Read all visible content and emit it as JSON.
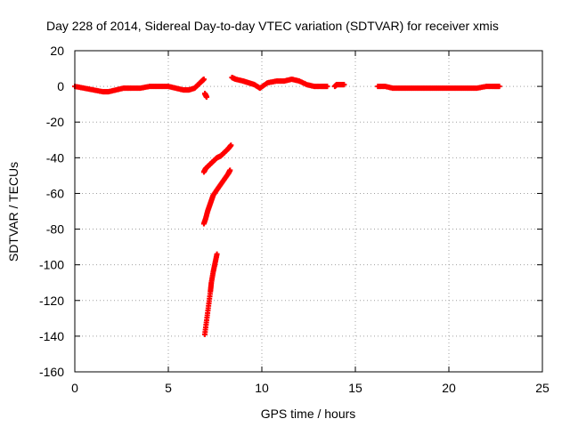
{
  "chart_data": {
    "type": "scatter",
    "title": "Day 228 of 2014, Sidereal Day-to-day VTEC variation (SDTVAR) for receiver xmis",
    "xlabel": "GPS time / hours",
    "ylabel": "SDTVAR / TECUs",
    "xlim": [
      0,
      25
    ],
    "ylim": [
      -160,
      20
    ],
    "xticks": [
      0,
      5,
      10,
      15,
      20,
      25
    ],
    "yticks": [
      -160,
      -140,
      -120,
      -100,
      -80,
      -60,
      -40,
      -20,
      0,
      20
    ],
    "grid": true,
    "marker": "plus",
    "series_color": "#ff0000",
    "segments": [
      {
        "x": [
          0.0,
          0.5,
          1.0,
          1.5,
          1.8,
          2.2,
          2.6,
          3.0,
          3.5,
          4.0,
          4.5,
          5.0,
          5.4,
          5.8,
          6.1,
          6.4,
          6.6,
          6.8,
          6.9
        ],
        "y": [
          0,
          -1,
          -2,
          -3,
          -3,
          -2,
          -1,
          -1,
          -1,
          0,
          0,
          0,
          -1,
          -2,
          -2,
          -1,
          1,
          3,
          4
        ]
      },
      {
        "x": [
          6.95,
          7.0,
          7.05
        ],
        "y": [
          -4,
          -5,
          -6
        ]
      },
      {
        "x": [
          6.9,
          7.0,
          7.2,
          7.4,
          7.6,
          7.8,
          8.0,
          8.2,
          8.35
        ],
        "y": [
          -48,
          -46,
          -44,
          -42,
          -40,
          -39,
          -37,
          -35,
          -33
        ]
      },
      {
        "x": [
          6.9,
          7.0,
          7.1,
          7.2,
          7.3,
          7.4,
          7.6,
          7.8,
          8.0,
          8.2,
          8.3
        ],
        "y": [
          -77,
          -74,
          -70,
          -67,
          -64,
          -61,
          -58,
          -55,
          -52,
          -49,
          -47
        ]
      },
      {
        "x": [
          6.95,
          7.05,
          7.15,
          7.25,
          7.3,
          7.4,
          7.5,
          7.6
        ],
        "y": [
          -139,
          -131,
          -123,
          -115,
          -110,
          -104,
          -99,
          -94
        ]
      },
      {
        "x": [
          8.4,
          8.6,
          9.0,
          9.3,
          9.6,
          9.9,
          10.3,
          10.8,
          11.2,
          11.6,
          12.0,
          12.4,
          12.8,
          13.2,
          13.5
        ],
        "y": [
          5,
          4,
          3,
          2,
          1,
          -1,
          2,
          3,
          3,
          4,
          3,
          1,
          0,
          0,
          0
        ]
      },
      {
        "x": [
          13.9,
          14.0,
          14.2,
          14.4
        ],
        "y": [
          0,
          1,
          1,
          1
        ]
      },
      {
        "x": [
          16.2,
          16.6,
          17.0,
          17.5,
          18.0,
          18.5,
          19.0,
          19.5,
          20.0,
          20.5,
          21.0,
          21.5,
          22.0,
          22.4,
          22.7
        ],
        "y": [
          0,
          0,
          -1,
          -1,
          -1,
          -1,
          -1,
          -1,
          -1,
          -1,
          -1,
          -1,
          0,
          0,
          0
        ]
      }
    ]
  }
}
